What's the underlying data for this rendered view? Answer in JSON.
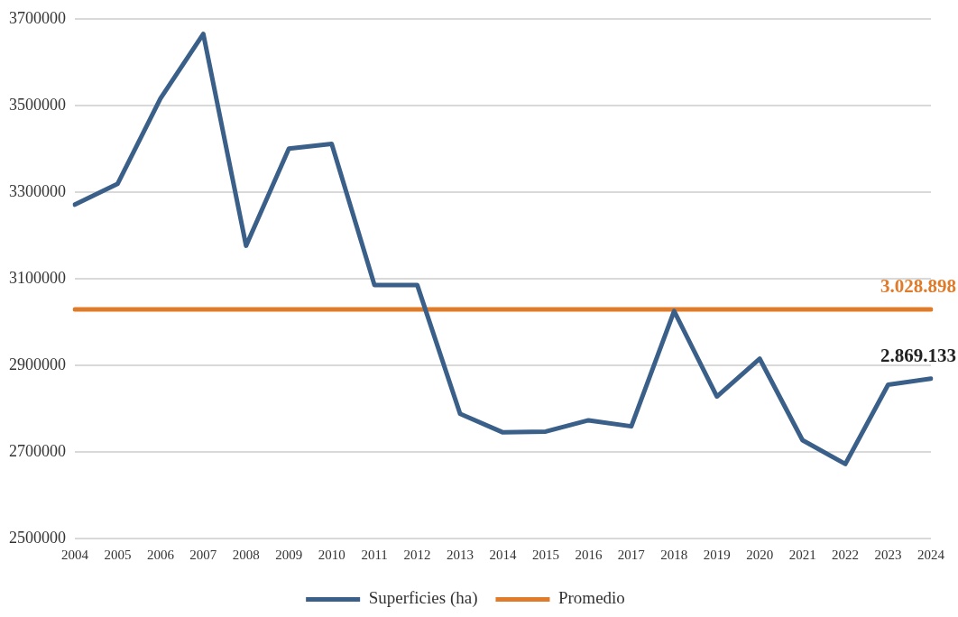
{
  "chart_data": {
    "type": "line",
    "categories": [
      "2004",
      "2005",
      "2006",
      "2007",
      "2008",
      "2009",
      "2010",
      "2011",
      "2012",
      "2013",
      "2014",
      "2015",
      "2016",
      "2017",
      "2018",
      "2019",
      "2020",
      "2021",
      "2022",
      "2023",
      "2024"
    ],
    "series": [
      {
        "name": "Superficies (ha)",
        "color": "#3a6089",
        "values": [
          3271000,
          3319000,
          3516000,
          3665000,
          3176000,
          3400000,
          3411000,
          3085000,
          3085000,
          2788000,
          2745000,
          2747000,
          2773000,
          2759000,
          3025000,
          2828000,
          2915000,
          2727000,
          2672000,
          2855000,
          2869133
        ],
        "value_labels": [
          null,
          null,
          null,
          null,
          null,
          null,
          null,
          null,
          null,
          null,
          null,
          null,
          null,
          null,
          null,
          null,
          null,
          null,
          null,
          null,
          "2.869.133"
        ]
      },
      {
        "name": "Promedio",
        "color": "#e07b2a",
        "values": [
          3028898,
          3028898,
          3028898,
          3028898,
          3028898,
          3028898,
          3028898,
          3028898,
          3028898,
          3028898,
          3028898,
          3028898,
          3028898,
          3028898,
          3028898,
          3028898,
          3028898,
          3028898,
          3028898,
          3028898,
          3028898
        ],
        "value_labels": [
          null,
          null,
          null,
          null,
          null,
          null,
          null,
          null,
          null,
          null,
          null,
          null,
          null,
          null,
          null,
          null,
          null,
          null,
          null,
          null,
          "3.028.898"
        ]
      }
    ],
    "ylim": [
      2500000,
      3700000
    ],
    "yticks": [
      2500000,
      2700000,
      2900000,
      3100000,
      3300000,
      3500000,
      3700000
    ],
    "grid": "y",
    "legend": "bottom",
    "marker": "none",
    "line_style": "solid"
  }
}
